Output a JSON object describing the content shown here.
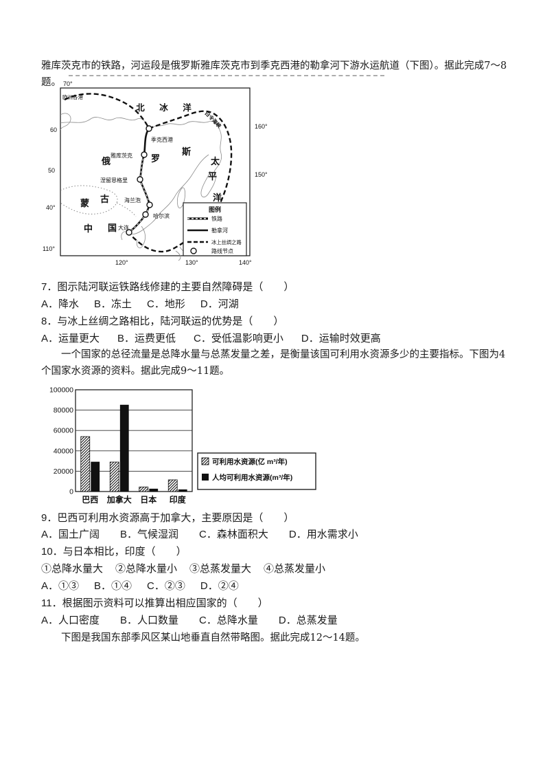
{
  "intro": {
    "paragraph1": "雅库茨克市的铁路，河运段是俄罗斯雅库茨克市到季克西港的勒拿河下游水运航道（下图）。据此完成7～8题。",
    "paragraph2": "一个国家的总径流量是总降水量与总蒸发量之差，是衡量该国可利用水资源多少的主要指标。下图为4个国家水资源的资料。据此完成9～11题。",
    "closing": "下图是我国东部季风区某山地垂直自然带略图。据此完成12～14题。"
  },
  "map": {
    "corner_lat": "70°",
    "left_labels": [
      "60",
      "50",
      "40°",
      "110°"
    ],
    "bottom_labels": [
      "120°",
      "130°",
      "140°"
    ],
    "right_labels": [
      "160°",
      "150°"
    ],
    "sea_arctic": "北 冰 洋",
    "euro_ports": "欧洲各港",
    "bering": "白令海峡",
    "russia": [
      "俄",
      "罗",
      "斯"
    ],
    "pacific": [
      "太",
      "平",
      "洋"
    ],
    "mongolia": [
      "蒙",
      "古"
    ],
    "china": [
      "中",
      "国"
    ],
    "cities": {
      "tiksi": "季克西港",
      "yakutsk": "雅库茨克",
      "neryungri": "涅留恩格里",
      "hailanpao": "海兰泡",
      "harbin": "哈尔滨",
      "dalian": "大连"
    },
    "legend": {
      "title": "图例",
      "railway": "铁路",
      "lena_river": "勒拿河",
      "ice_silk_road": "冰上丝绸之路",
      "route_node": "路线节点"
    }
  },
  "questions": [
    {
      "stem": "7．图示陆河联运铁路线修建的主要自然障碍是（　　）",
      "options": [
        "A．降水",
        "B．冻土",
        "C．地形",
        "D．河湖"
      ]
    },
    {
      "stem": "8．与冰上丝绸之路相比，陆河联运的优势是（　　）",
      "options": [
        "A．运量更大",
        "B．运费更低",
        "C．受低温影响更小",
        "D．运输时效更高"
      ]
    },
    {
      "stem": "9．巴西可利用水资源高于加拿大，主要原因是（　　）",
      "options": [
        "A．国土广阔",
        "B．气候湿润",
        "C．森林面积大",
        "D．用水需求小"
      ]
    },
    {
      "stem": "10．与日本相比，印度（　　）",
      "suboptions": [
        "①总降水量大",
        "②总降水量小",
        "③总蒸发量大",
        "④总蒸发量小"
      ],
      "options": [
        "A．①③",
        "B．①④",
        "C．②③",
        "D．②④"
      ]
    },
    {
      "stem": "11．根据图示资料可以推算出相应国家的（　　）",
      "options": [
        "A．人口密度",
        "B．人口数量",
        "C．总降水量",
        "D．总蒸发量"
      ]
    }
  ],
  "chart_data": {
    "type": "bar",
    "categories": [
      "巴西",
      "加拿大",
      "日本",
      "印度"
    ],
    "series": [
      {
        "name": "可利用水资源(亿 m³/年)",
        "values": [
          54000,
          29000,
          4500,
          11500
        ]
      },
      {
        "name": "人均可利用水资源(m³/年)",
        "values": [
          29000,
          85000,
          2500,
          1800
        ]
      }
    ],
    "title": "",
    "xlabel": "",
    "ylabel": "",
    "ylim": [
      0,
      100000
    ],
    "yticks": [
      0,
      20000,
      40000,
      60000,
      80000,
      100000
    ],
    "grid": true,
    "legend_position": "right"
  }
}
